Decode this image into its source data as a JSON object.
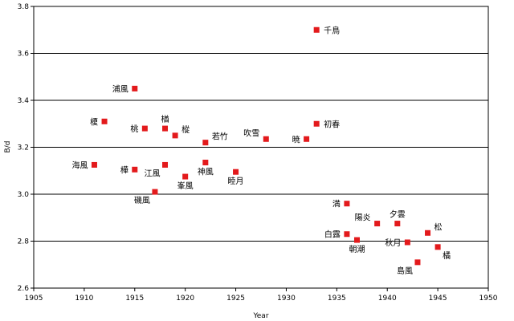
{
  "chart_data": {
    "type": "scatter",
    "title": "",
    "xlabel": "Year",
    "ylabel": "B/d",
    "xlim": [
      1905,
      1950
    ],
    "ylim": [
      2.6,
      3.8
    ],
    "xticks": [
      "1905",
      "1910",
      "1915",
      "1920",
      "1925",
      "1930",
      "1935",
      "1940",
      "1945",
      "1950"
    ],
    "yticks": [
      "2.6",
      "2.8",
      "3.0",
      "3.2",
      "3.4",
      "3.6",
      "3.8"
    ],
    "grid": "horizontal",
    "marker_color": "#e31a1c",
    "points": [
      {
        "label": "千鳥",
        "x": 1933,
        "y": 3.7,
        "label_pos": "right"
      },
      {
        "label": "浦風",
        "x": 1915,
        "y": 3.45,
        "label_pos": "left"
      },
      {
        "label": "榎",
        "x": 1912,
        "y": 3.31,
        "label_pos": "left"
      },
      {
        "label": "桃",
        "x": 1916,
        "y": 3.28,
        "label_pos": "left"
      },
      {
        "label": "楢",
        "x": 1918,
        "y": 3.28,
        "label_pos": "above"
      },
      {
        "label": "樅",
        "x": 1919,
        "y": 3.25,
        "label_pos": "above-right"
      },
      {
        "label": "若竹",
        "x": 1922,
        "y": 3.22,
        "label_pos": "above-right"
      },
      {
        "label": "吹雪",
        "x": 1928,
        "y": 3.235,
        "label_pos": "above-left"
      },
      {
        "label": "暁",
        "x": 1932,
        "y": 3.235,
        "label_pos": "left"
      },
      {
        "label": "初春",
        "x": 1933,
        "y": 3.3,
        "label_pos": "right"
      },
      {
        "label": "海風",
        "x": 1911,
        "y": 3.125,
        "label_pos": "left"
      },
      {
        "label": "樺",
        "x": 1915,
        "y": 3.105,
        "label_pos": "left"
      },
      {
        "label": "江風",
        "x": 1918,
        "y": 3.125,
        "label_pos": "below-left"
      },
      {
        "label": "神風",
        "x": 1922,
        "y": 3.135,
        "label_pos": "below"
      },
      {
        "label": "峯風",
        "x": 1920,
        "y": 3.075,
        "label_pos": "below"
      },
      {
        "label": "睦月",
        "x": 1925,
        "y": 3.095,
        "label_pos": "below"
      },
      {
        "label": "磯風",
        "x": 1917,
        "y": 3.01,
        "label_pos": "below-left"
      },
      {
        "label": "満",
        "x": 1936,
        "y": 2.96,
        "label_pos": "left"
      },
      {
        "label": "陽炎",
        "x": 1939,
        "y": 2.875,
        "label_pos": "above-left"
      },
      {
        "label": "夕雲",
        "x": 1941,
        "y": 2.875,
        "label_pos": "above"
      },
      {
        "label": "松",
        "x": 1944,
        "y": 2.835,
        "label_pos": "above-right"
      },
      {
        "label": "白露",
        "x": 1936,
        "y": 2.83,
        "label_pos": "left"
      },
      {
        "label": "朝潮",
        "x": 1937,
        "y": 2.805,
        "label_pos": "below"
      },
      {
        "label": "秋月",
        "x": 1942,
        "y": 2.795,
        "label_pos": "left"
      },
      {
        "label": "橘",
        "x": 1945,
        "y": 2.775,
        "label_pos": "below-right"
      },
      {
        "label": "島風",
        "x": 1943,
        "y": 2.71,
        "label_pos": "below-left"
      }
    ]
  }
}
